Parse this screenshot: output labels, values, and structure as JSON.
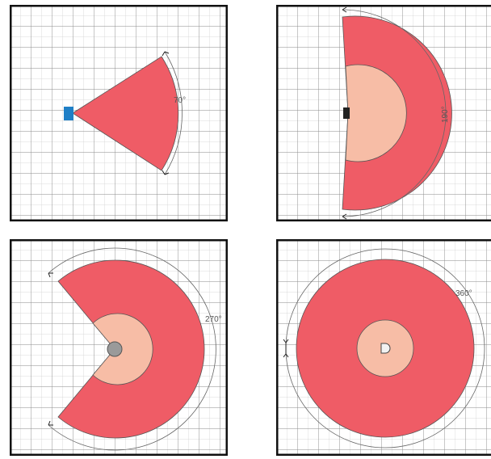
{
  "panels": [
    {
      "angle": 70,
      "label": "70°",
      "sensor": "rectangle"
    },
    {
      "angle": 190,
      "label": "190°",
      "sensor": "small-rectangle"
    },
    {
      "angle": 270,
      "label": "270°",
      "sensor": "circle"
    },
    {
      "angle": 360,
      "label": "360°",
      "sensor": "half-circle"
    }
  ],
  "colors": {
    "outer_fill": "#ef5c66",
    "inner_fill": "#f7bda6",
    "grid_major": "#8a8a8a",
    "grid_minor": "#cfcfcf",
    "frame": "#111111",
    "sensor_blue": "#1f7fc6",
    "sensor_gray": "#9a9a9a"
  }
}
